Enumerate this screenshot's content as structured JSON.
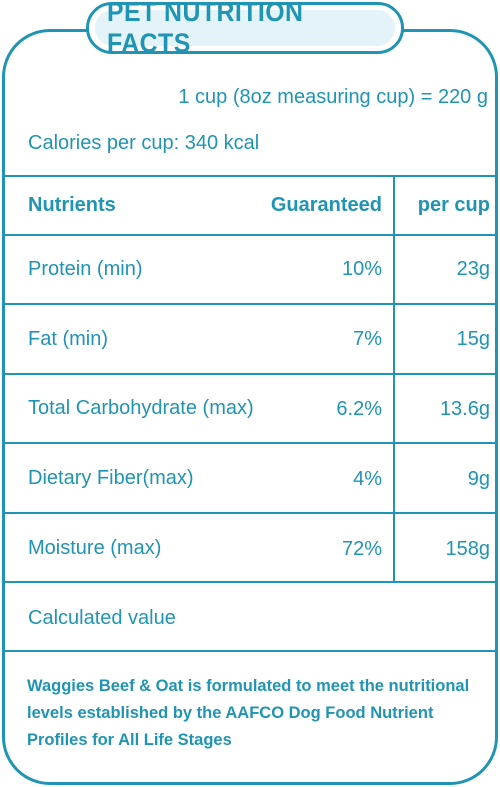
{
  "title": "PET NUTRITION FACTS",
  "serving": "1 cup (8oz measuring cup) = 220 g",
  "calories": "Calories per cup: 340 kcal",
  "table": {
    "headers": {
      "nutrients": "Nutrients",
      "guaranteed": "Guaranteed",
      "per_cup": "per cup"
    },
    "rows": [
      {
        "nutrient": "Protein (min)",
        "guaranteed": "10%",
        "per_cup": "23g"
      },
      {
        "nutrient": "Fat (min)",
        "guaranteed": "7%",
        "per_cup": "15g"
      },
      {
        "nutrient": "Total Carbohydrate (max)",
        "guaranteed": "6.2%",
        "per_cup": "13.6g"
      },
      {
        "nutrient": "Dietary Fiber(max)",
        "guaranteed": "4%",
        "per_cup": "9g"
      },
      {
        "nutrient": "Moisture (max)",
        "guaranteed": "72%",
        "per_cup": "158g"
      }
    ],
    "note": "Calculated value"
  },
  "footer": "Waggies Beef & Oat is formulated to meet the nutritional levels established by the AAFCO Dog Food Nutrient Profiles for All Life Stages",
  "colors": {
    "accent": "#1f94b4",
    "title_fill": "#e3f3f7",
    "background": "#ffffff"
  }
}
